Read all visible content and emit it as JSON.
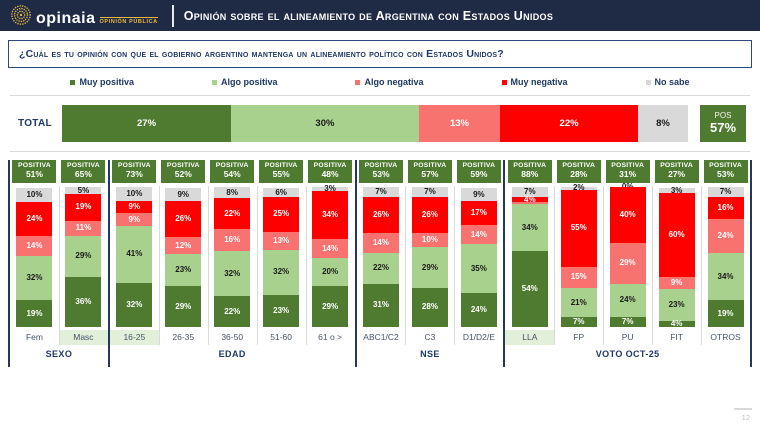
{
  "header": {
    "logo_word": "opinaia",
    "logo_sub": "OPINIÓN PÚBLICA",
    "title": "Opinión sobre el alineamiento de Argentina con Estados Unidos"
  },
  "question": "¿Cuál es tu opinión con que el gobierno argentino mantenga un alineamiento político con Estados Unidos?",
  "colors": {
    "muy_positiva": "#4f7b31",
    "algo_positiva": "#a9d18e",
    "algo_negativa": "#f8726f",
    "muy_negativa": "#fe0000",
    "no_sabe": "#d9d9d9",
    "navy": "#1f3864",
    "highlight": "#e2f0d9"
  },
  "legend": {
    "items": [
      {
        "label": "Muy positiva",
        "key": "muy_positiva"
      },
      {
        "label": "Algo positiva",
        "key": "algo_positiva"
      },
      {
        "label": "Algo negativa",
        "key": "algo_negativa"
      },
      {
        "label": "Muy negativa",
        "key": "muy_negativa"
      },
      {
        "label": "No sabe",
        "key": "no_sabe"
      }
    ]
  },
  "chart_data": {
    "type": "bar",
    "stacked": true,
    "unit": "%",
    "series": [
      "Muy positiva",
      "Algo positiva",
      "Algo negativa",
      "Muy negativa",
      "No sabe"
    ],
    "badge_title": "POSITIVA",
    "total": {
      "label": "TOTAL",
      "values": [
        27,
        30,
        13,
        22,
        8
      ],
      "labels": [
        "27%",
        "30%",
        "13%",
        "22%",
        "8%"
      ],
      "pos_badge": {
        "top": "POS",
        "value": "57%"
      }
    },
    "groups": [
      {
        "label": "SEXO",
        "columns": [
          {
            "label": "Fem",
            "positiva": "51%",
            "values": [
              19,
              32,
              14,
              24,
              10
            ],
            "labels": [
              "19%",
              "32%",
              "14%",
              "24%",
              "10%"
            ],
            "highlight": false
          },
          {
            "label": "Masc",
            "positiva": "65%",
            "values": [
              36,
              29,
              11,
              19,
              5
            ],
            "labels": [
              "36%",
              "29%",
              "11%",
              "19%",
              "5%"
            ],
            "highlight": true
          }
        ]
      },
      {
        "label": "EDAD",
        "columns": [
          {
            "label": "16-25",
            "positiva": "73%",
            "values": [
              32,
              41,
              9,
              9,
              10
            ],
            "labels": [
              "32%",
              "41%",
              "9%",
              "9%",
              "10%"
            ],
            "highlight": true
          },
          {
            "label": "26-35",
            "positiva": "52%",
            "values": [
              29,
              23,
              12,
              26,
              9
            ],
            "labels": [
              "29%",
              "23%",
              "12%",
              "26%",
              "9%"
            ],
            "highlight": false
          },
          {
            "label": "36-50",
            "positiva": "54%",
            "values": [
              22,
              32,
              16,
              22,
              8
            ],
            "labels": [
              "22%",
              "32%",
              "16%",
              "22%",
              "8%"
            ],
            "highlight": false
          },
          {
            "label": "51-60",
            "positiva": "55%",
            "values": [
              23,
              32,
              13,
              25,
              6
            ],
            "labels": [
              "23%",
              "32%",
              "13%",
              "25%",
              "6%"
            ],
            "highlight": false
          },
          {
            "label": "61 o >",
            "positiva": "48%",
            "values": [
              29,
              20,
              14,
              34,
              3
            ],
            "labels": [
              "29%",
              "20%",
              "14%",
              "34%",
              "3%"
            ],
            "highlight": false
          }
        ]
      },
      {
        "label": "NSE",
        "columns": [
          {
            "label": "ABC1/C2",
            "positiva": "53%",
            "values": [
              31,
              22,
              14,
              26,
              7
            ],
            "labels": [
              "31%",
              "22%",
              "14%",
              "26%",
              "7%"
            ],
            "highlight": false
          },
          {
            "label": "C3",
            "positiva": "57%",
            "values": [
              28,
              29,
              10,
              26,
              7
            ],
            "labels": [
              "28%",
              "29%",
              "10%",
              "26%",
              "7%"
            ],
            "highlight": false
          },
          {
            "label": "D1/D2/E",
            "positiva": "59%",
            "values": [
              24,
              35,
              14,
              17,
              9
            ],
            "labels": [
              "24%",
              "35%",
              "14%",
              "17%",
              "9%"
            ],
            "highlight": false
          }
        ]
      },
      {
        "label": "VOTO OCT-25",
        "columns": [
          {
            "label": "LLA",
            "positiva": "88%",
            "values": [
              54,
              34,
              1,
              4,
              7
            ],
            "labels": [
              "54%",
              "34%",
              "",
              "4%",
              "7%"
            ],
            "highlight": true
          },
          {
            "label": "FP",
            "positiva": "28%",
            "values": [
              7,
              21,
              15,
              55,
              2
            ],
            "labels": [
              "7%",
              "21%",
              "15%",
              "55%",
              "2%"
            ],
            "highlight": false
          },
          {
            "label": "PU",
            "positiva": "31%",
            "values": [
              7,
              24,
              29,
              40,
              0
            ],
            "labels": [
              "7%",
              "24%",
              "29%",
              "40%",
              "0%"
            ],
            "highlight": false
          },
          {
            "label": "FIT",
            "positiva": "27%",
            "values": [
              4,
              23,
              9,
              60,
              3
            ],
            "labels": [
              "4%",
              "23%",
              "9%",
              "60%",
              "3%"
            ],
            "highlight": false
          },
          {
            "label": "OTROS",
            "positiva": "53%",
            "values": [
              19,
              34,
              24,
              16,
              7
            ],
            "labels": [
              "19%",
              "34%",
              "24%",
              "16%",
              "7%"
            ],
            "highlight": false
          }
        ]
      }
    ]
  },
  "footer": {
    "page_number": "12"
  }
}
